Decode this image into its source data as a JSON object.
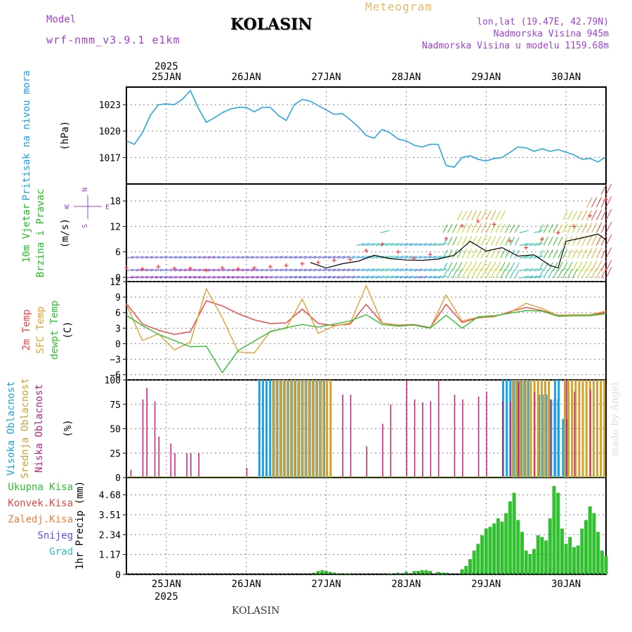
{
  "header": {
    "model_label": "Model",
    "model_name": "wrf-nmm_v3.9.1 e1km",
    "location": "KOLASIN",
    "product": "Meteogram",
    "coords": "lon,lat (19.47E, 42.79N)",
    "elevation": "Nadmorska Visina 945m",
    "model_elevation": "Nadmorska Visina u modelu 1159.68m"
  },
  "footer": {
    "location": "KOLASIN",
    "credit": "made by Angel"
  },
  "time_axis": {
    "year": "2025",
    "days": [
      "25JAN",
      "26JAN",
      "27JAN",
      "28JAN",
      "29JAN",
      "30JAN"
    ],
    "start_day_offset": -0.5,
    "end_day_offset": 5.5
  },
  "colors": {
    "pressure": "#1aa3e8",
    "temp_2m": "#f04040",
    "temp_sfc": "#e0a030",
    "dewpoint": "#30c030",
    "cloud_high": "#1aa3e8",
    "cloud_mid": "#d0a030",
    "cloud_low": "#c0207a",
    "precip_total": "#30c030",
    "grid": "#808080"
  },
  "chart_data": [
    {
      "type": "line",
      "panel": "pressure",
      "ylabel": "Pritisak na nivou mora",
      "unit": "(hPa)",
      "yticks": [
        1017,
        1020,
        1023
      ],
      "ylim": [
        1014,
        1025
      ],
      "series": [
        {
          "x": [
            -0.5,
            -0.4,
            -0.3,
            -0.2,
            -0.1,
            0,
            0.1,
            0.2,
            0.3,
            0.4,
            0.5,
            0.6,
            0.7,
            0.8,
            0.9,
            1,
            1.1,
            1.2,
            1.3,
            1.4,
            1.5,
            1.6,
            1.7,
            1.8,
            1.9,
            2,
            2.1,
            2.2,
            2.3,
            2.4,
            2.5,
            2.6,
            2.7,
            2.8,
            2.9,
            3,
            3.1,
            3.2,
            3.3,
            3.4,
            3.5,
            3.6,
            3.7,
            3.8,
            3.9,
            4,
            4.1,
            4.2,
            4.3,
            4.4,
            4.5,
            4.6,
            4.7,
            4.8,
            4.9,
            5,
            5.1,
            5.2,
            5.3,
            5.4,
            5.5
          ],
          "values": [
            1018.9,
            1018.5,
            1019.8,
            1021.8,
            1023.0,
            1023.1,
            1023.0,
            1023.6,
            1024.6,
            1022.6,
            1021.0,
            1021.5,
            1022.1,
            1022.5,
            1022.7,
            1022.7,
            1022.2,
            1022.7,
            1022.7,
            1021.8,
            1021.2,
            1023.0,
            1023.6,
            1023.4,
            1022.9,
            1022.4,
            1021.9,
            1022.0,
            1021.3,
            1020.5,
            1019.5,
            1019.2,
            1020.2,
            1019.8,
            1019.1,
            1018.9,
            1018.4,
            1018.2,
            1018.5,
            1018.5,
            1016.1,
            1015.9,
            1017.0,
            1017.2,
            1016.8,
            1016.6,
            1016.9,
            1017.0,
            1017.6,
            1018.2,
            1018.1,
            1017.7,
            1018.0,
            1017.7,
            1017.9,
            1017.6,
            1017.3,
            1016.8,
            1016.9,
            1016.5,
            1017.1
          ]
        }
      ]
    },
    {
      "type": "scatter",
      "panel": "wind",
      "ylabel": "10m Vjetar Brzina i Pravac",
      "unit": "(m/s)",
      "compass": [
        "N",
        "S",
        "W",
        "E"
      ],
      "yticks": [
        0,
        6,
        12,
        18
      ],
      "ylim": [
        -1,
        22
      ],
      "series": [
        {
          "name": "speed",
          "x": [
            -0.5,
            -0.3,
            -0.1,
            0.1,
            0.3,
            0.5,
            0.7,
            0.9,
            1.1,
            1.3,
            1.5,
            1.7,
            1.9,
            2.1,
            2.3,
            2.5,
            2.7,
            2.9,
            3.1,
            3.3,
            3.5,
            3.7,
            3.9,
            4.1,
            4.3,
            4.5,
            4.7,
            4.9,
            5.1,
            5.3,
            5.5
          ],
          "values": [
            2.3,
            2.0,
            2.5,
            2.1,
            2.1,
            1.6,
            2.2,
            2.0,
            2.2,
            2.5,
            2.8,
            3.2,
            3.5,
            4.0,
            4.2,
            6.3,
            7.8,
            6.0,
            4.5,
            5.4,
            9.1,
            12.1,
            13.2,
            12.5,
            8.6,
            7.0,
            9.0,
            10.5,
            12.0,
            14.5,
            18.3
          ]
        },
        {
          "name": "mean",
          "x": [
            1.8,
            2.0,
            2.2,
            2.4,
            2.6,
            2.8,
            3.0,
            3.2,
            3.4,
            3.6,
            3.8,
            4.0,
            4.2,
            4.4,
            4.6,
            4.8,
            4.9,
            5.0,
            5.2,
            5.4,
            5.5
          ],
          "values": [
            3.5,
            2.2,
            3.2,
            3.8,
            5.2,
            4.4,
            4.1,
            4.0,
            4.3,
            5.2,
            8.5,
            6.2,
            7.0,
            5.0,
            5.3,
            2.8,
            2.2,
            8.5,
            9.3,
            10.2,
            8.8
          ]
        }
      ]
    },
    {
      "type": "line",
      "panel": "temperature",
      "ylabel": "2m Temp",
      "unit": "(C)",
      "yticks": [
        -6,
        -3,
        0,
        3,
        6,
        9,
        12
      ],
      "ylim": [
        -7,
        12
      ],
      "series": [
        {
          "name": "2m Temp",
          "x": [
            -0.5,
            -0.3,
            -0.1,
            0.1,
            0.3,
            0.5,
            0.7,
            0.9,
            1.1,
            1.3,
            1.5,
            1.7,
            1.9,
            2.1,
            2.3,
            2.5,
            2.7,
            2.9,
            3.1,
            3.3,
            3.5,
            3.7,
            3.9,
            4.1,
            4.3,
            4.5,
            4.7,
            4.9,
            5.1,
            5.3,
            5.5
          ],
          "values": [
            7.8,
            3.8,
            2.6,
            1.8,
            2.3,
            8.3,
            7.3,
            5.8,
            4.6,
            3.9,
            4.0,
            6.7,
            3.9,
            3.5,
            3.8,
            7.6,
            4.0,
            3.6,
            3.7,
            3.1,
            7.6,
            4.1,
            5.0,
            5.2,
            6.2,
            7.0,
            6.4,
            5.5,
            5.6,
            5.6,
            6.0
          ]
        },
        {
          "name": "SFC Temp",
          "x": [
            -0.5,
            -0.3,
            -0.1,
            0.1,
            0.3,
            0.5,
            0.7,
            0.9,
            1.1,
            1.3,
            1.5,
            1.7,
            1.9,
            2.1,
            2.3,
            2.5,
            2.7,
            2.9,
            3.1,
            3.3,
            3.5,
            3.7,
            3.9,
            4.1,
            4.3,
            4.5,
            4.7,
            4.9,
            5.1,
            5.3,
            5.5
          ],
          "values": [
            7.6,
            0.6,
            1.9,
            -1.2,
            0.3,
            10.6,
            5.0,
            -1.6,
            -1.8,
            2.4,
            3.0,
            8.6,
            2.0,
            3.4,
            4.0,
            11.2,
            4.0,
            3.5,
            3.6,
            3.0,
            9.4,
            4.4,
            5.1,
            5.3,
            6.0,
            7.8,
            6.8,
            5.4,
            5.6,
            5.6,
            6.3
          ]
        },
        {
          "name": "dewpt Temp",
          "x": [
            -0.5,
            -0.3,
            -0.1,
            0.1,
            0.3,
            0.5,
            0.7,
            0.9,
            1.1,
            1.3,
            1.5,
            1.7,
            1.9,
            2.1,
            2.3,
            2.5,
            2.7,
            2.9,
            3.1,
            3.3,
            3.5,
            3.7,
            3.9,
            4.1,
            4.3,
            4.5,
            4.7,
            4.9,
            5.1,
            5.3,
            5.5
          ],
          "values": [
            5.5,
            3.5,
            1.8,
            0.6,
            -0.6,
            -0.5,
            -5.6,
            -1.3,
            0.5,
            2.3,
            3.1,
            3.7,
            3.2,
            3.8,
            4.4,
            5.6,
            3.7,
            3.4,
            3.6,
            3.0,
            5.5,
            3.0,
            5.2,
            5.4,
            5.9,
            6.4,
            6.3,
            5.3,
            5.4,
            5.4,
            5.8
          ]
        }
      ]
    },
    {
      "type": "bar",
      "panel": "clouds",
      "ylabel": "Visoka Oblacnost",
      "unit": "(%)",
      "yticks": [
        0,
        25,
        50,
        75,
        100
      ],
      "ylim": [
        0,
        100
      ],
      "series": [
        {
          "name": "Visoka Oblacnost",
          "segments": [
            [
              1.15,
              2.0,
              100
            ],
            [
              4.2,
              4.55,
              100
            ],
            [
              4.65,
              4.75,
              85
            ],
            [
              4.8,
              4.9,
              80
            ],
            [
              4.95,
              5.0,
              60
            ],
            [
              4.85,
              4.9,
              100
            ]
          ]
        },
        {
          "name": "Srednja Oblacnost",
          "segments": [
            [
              1.3,
              2.05,
              100
            ],
            [
              4.3,
              4.8,
              100
            ],
            [
              4.95,
              5.5,
              100
            ]
          ]
        },
        {
          "name": "Niska Oblacnost",
          "bars": [
            [
              -0.45,
              8
            ],
            [
              -0.3,
              80
            ],
            [
              -0.25,
              92
            ],
            [
              -0.15,
              78
            ],
            [
              -0.1,
              42
            ],
            [
              0.05,
              35
            ],
            [
              0.1,
              25
            ],
            [
              0.25,
              25
            ],
            [
              0.3,
              25
            ],
            [
              0.4,
              25
            ],
            [
              1.0,
              10
            ],
            [
              2.2,
              85
            ],
            [
              2.3,
              85
            ],
            [
              2.5,
              32
            ],
            [
              2.7,
              55
            ],
            [
              2.8,
              75
            ],
            [
              3.0,
              100
            ],
            [
              3.1,
              80
            ],
            [
              3.2,
              77
            ],
            [
              3.3,
              78
            ],
            [
              3.4,
              100
            ],
            [
              3.6,
              85
            ],
            [
              3.7,
              80
            ],
            [
              3.9,
              83
            ],
            [
              4.0,
              88
            ],
            [
              4.2,
              78
            ],
            [
              4.3,
              78
            ],
            [
              4.4,
              98
            ],
            [
              4.6,
              88
            ],
            [
              4.8,
              80
            ],
            [
              5.0,
              100
            ],
            [
              5.1,
              88
            ],
            [
              5.3,
              90
            ]
          ]
        }
      ]
    },
    {
      "type": "bar",
      "panel": "precip",
      "ylabel": "1hr Precip",
      "unit": "(mm)",
      "legend": [
        "Ukupna Kisa",
        "Konvek.Kisa",
        "Zaledj.Kisa",
        "Snijeg",
        "Grad"
      ],
      "yticks": [
        0,
        1.17,
        2.34,
        3.51,
        4.68
      ],
      "ylim": [
        0,
        5.7
      ],
      "series": [
        {
          "name": "Ukupna Kisa",
          "x": [
            1.85,
            1.9,
            1.95,
            2.0,
            2.05,
            2.1,
            2.15,
            2.25,
            2.3,
            2.8,
            2.9,
            3.0,
            3.1,
            3.15,
            3.2,
            3.25,
            3.3,
            3.4,
            3.45,
            3.5,
            3.7,
            3.75,
            3.8,
            3.85,
            3.9,
            3.95,
            4.0,
            4.05,
            4.1,
            4.15,
            4.2,
            4.25,
            4.3,
            4.35,
            4.4,
            4.45,
            4.5,
            4.55,
            4.6,
            4.65,
            4.7,
            4.75,
            4.8,
            4.85,
            4.9,
            4.95,
            5.0,
            5.05,
            5.1,
            5.15,
            5.2,
            5.25,
            5.3,
            5.35,
            5.4,
            5.45,
            5.5
          ],
          "values": [
            0.1,
            0.2,
            0.25,
            0.2,
            0.15,
            0.1,
            0.05,
            0.05,
            0.05,
            0.05,
            0.1,
            0.15,
            0.2,
            0.2,
            0.25,
            0.25,
            0.2,
            0.15,
            0.1,
            0.1,
            0.3,
            0.5,
            0.9,
            1.4,
            1.8,
            2.3,
            2.7,
            2.8,
            3.0,
            3.3,
            3.1,
            3.6,
            4.3,
            4.8,
            3.2,
            2.5,
            1.4,
            1.2,
            1.5,
            2.3,
            2.2,
            2.0,
            3.3,
            5.2,
            4.8,
            2.7,
            1.8,
            2.2,
            1.6,
            1.7,
            2.7,
            3.2,
            4.0,
            3.6,
            2.5,
            1.4,
            1.1
          ]
        }
      ]
    }
  ]
}
